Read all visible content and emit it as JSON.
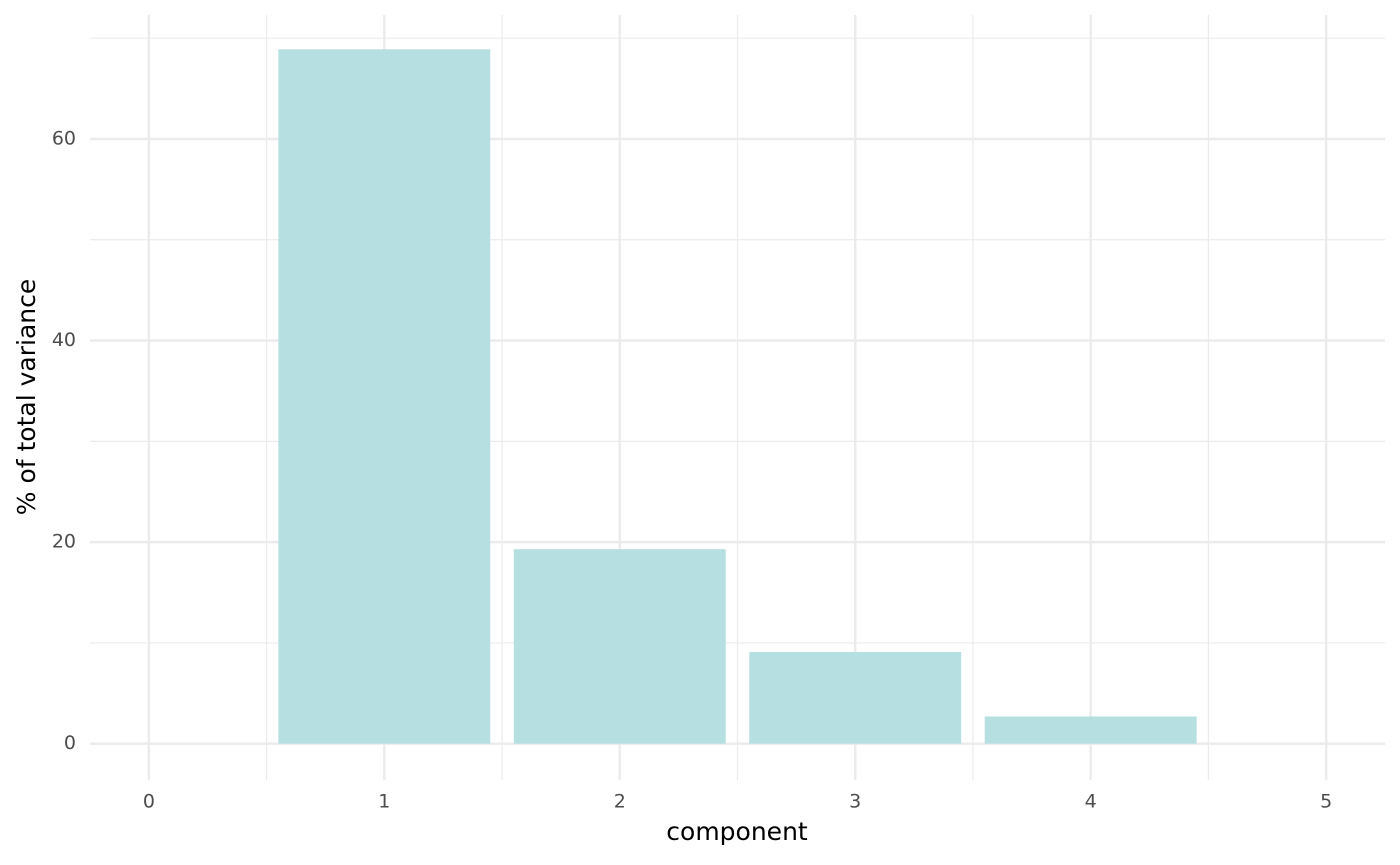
{
  "chart_data": {
    "type": "bar",
    "x": [
      1,
      2,
      3,
      4
    ],
    "values": [
      68.9,
      19.3,
      9.1,
      2.7
    ],
    "color": "#b6dfe1",
    "bar_width": 0.9,
    "xlabel": "component",
    "ylabel": "% of total variance",
    "xlim": [
      -0.25,
      5.25
    ],
    "xticks": [
      0,
      1,
      2,
      3,
      4,
      5
    ],
    "xminorticks": [
      0.5,
      1.5,
      2.5,
      3.5,
      4.5
    ],
    "ylim": [
      -3.6,
      72.3
    ],
    "yticks": [
      0,
      20,
      40,
      60
    ],
    "yminorticks": [
      10,
      30,
      50,
      70
    ],
    "grid": true
  }
}
